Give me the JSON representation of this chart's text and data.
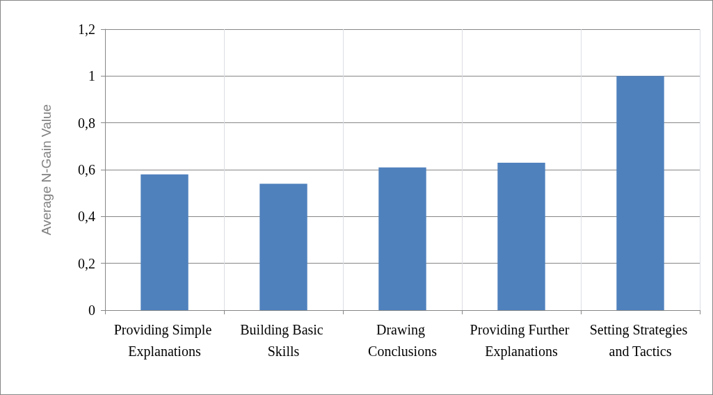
{
  "chart_data": {
    "type": "bar",
    "ylabel": "Average N-Gain Value",
    "categories": [
      "Providing Simple Explanations",
      "Building Basic Skills",
      "Drawing Conclusions",
      "Providing Further Explanations",
      "Setting Strategies and Tactics"
    ],
    "values": [
      0.58,
      0.54,
      0.61,
      0.63,
      1.0
    ],
    "color": "#4f81bd",
    "ylim": [
      0,
      1.2
    ],
    "yticks": [
      0,
      {
        "value": 0.2,
        "label": "0,2"
      },
      {
        "value": 0.4,
        "label": "0,4"
      },
      {
        "value": 0.6,
        "label": "0,6"
      },
      {
        "value": 0.8,
        "label": "0,8"
      },
      1,
      {
        "value": 1.2,
        "label": "1,2"
      }
    ],
    "grid": true
  }
}
